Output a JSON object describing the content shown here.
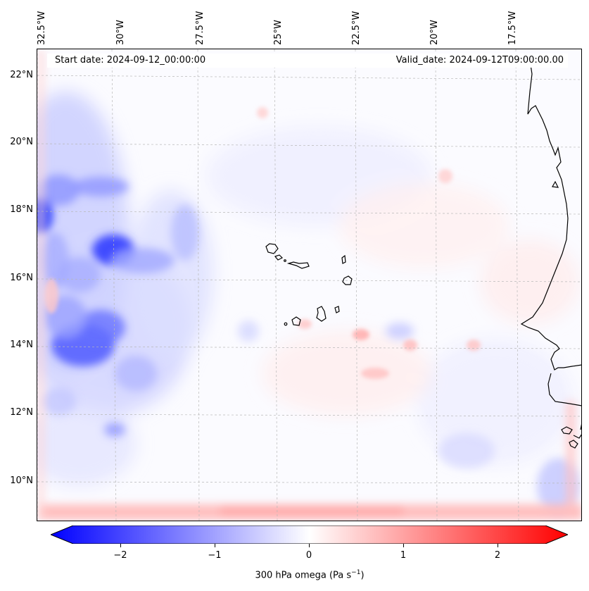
{
  "header": {
    "start_date": "Start date: 2024-09-12_00:00:00",
    "valid_date": "Valid_date: 2024-09-12T09:00:00.00"
  },
  "longitude_labels": [
    "32.5°W",
    "30°W",
    "27.5°W",
    "25°W",
    "22.5°W",
    "20°W",
    "17.5°W"
  ],
  "latitude_labels": [
    "22°N",
    "20°N",
    "18°N",
    "16°N",
    "14°N",
    "12°N",
    "10°N"
  ],
  "colorbar": {
    "ticks": [
      "−2",
      "−1",
      "0",
      "1",
      "2"
    ],
    "label_main": "300 hPa omega (Pa s",
    "label_sup": "−1",
    "label_end": ")",
    "range": [
      -2.75,
      2.75
    ],
    "colors": {
      "negative": "#0000ff",
      "zero": "#ffffff",
      "positive": "#ff0000"
    }
  },
  "map": {
    "variable": "omega",
    "level": "300 hPa",
    "coastline_color": "#000000",
    "gridline_color": "#b0b0b0"
  }
}
